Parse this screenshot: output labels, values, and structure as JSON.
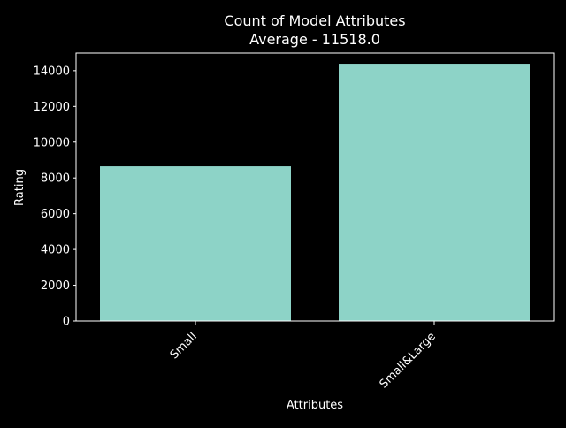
{
  "chart_data": {
    "type": "bar",
    "title": "Count of Model Attributes",
    "subtitle": "Average - 11518.0",
    "xlabel": "Attributes",
    "ylabel": "Rating",
    "categories": [
      "Small",
      "Small&Large"
    ],
    "values": [
      8650,
      14386
    ],
    "ylim": [
      0,
      14982
    ],
    "yticks": [
      0,
      2000,
      4000,
      6000,
      8000,
      10000,
      12000,
      14000
    ],
    "ytick_labels": [
      "0",
      "2000",
      "4000",
      "6000",
      "8000",
      "10000",
      "12000",
      "14000"
    ],
    "xtick_rotation": 45,
    "grid": false,
    "legend": "none",
    "colors": {
      "background": "#000000",
      "bar": "#8dd3c7",
      "foreground": "#ffffff"
    }
  }
}
